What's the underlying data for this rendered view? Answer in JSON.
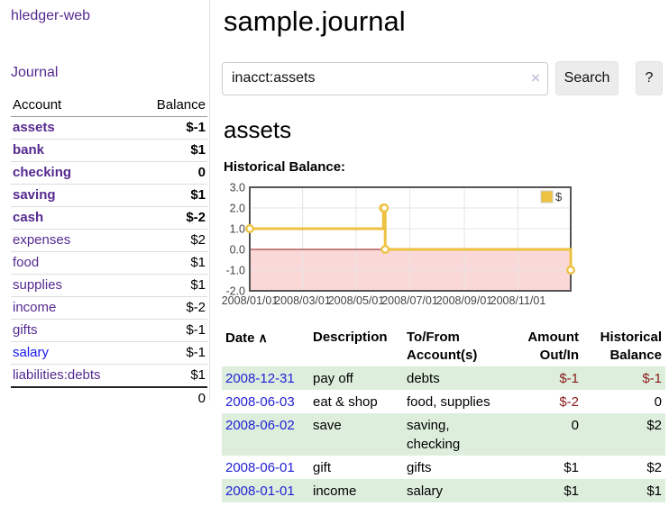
{
  "app": {
    "brand": "hledger-web",
    "nav_journal": "Journal"
  },
  "sidebar": {
    "accounts_header": {
      "account": "Account",
      "balance": "Balance"
    },
    "accounts": [
      {
        "name": "assets",
        "depth": 1,
        "balance": "$-1",
        "bold": true,
        "negative": "strong"
      },
      {
        "name": "bank",
        "depth": 2,
        "balance": "$1",
        "bold": true,
        "negative": null
      },
      {
        "name": "checking",
        "depth": 3,
        "balance": "0",
        "bold": true,
        "negative": null
      },
      {
        "name": "saving",
        "depth": 3,
        "balance": "$1",
        "bold": true,
        "negative": null
      },
      {
        "name": "cash",
        "depth": 2,
        "balance": "$-2",
        "bold": true,
        "negative": "strong"
      },
      {
        "name": "expenses",
        "depth": 1,
        "balance": "$2",
        "bold": false,
        "negative": null
      },
      {
        "name": "food",
        "depth": 2,
        "balance": "$1",
        "bold": false,
        "negative": null
      },
      {
        "name": "supplies",
        "depth": 2,
        "balance": "$1",
        "bold": false,
        "negative": null
      },
      {
        "name": "income",
        "depth": 1,
        "balance": "$-2",
        "bold": false,
        "negative": "soft"
      },
      {
        "name": "gifts",
        "depth": 2,
        "balance": "$-1",
        "bold": false,
        "negative": "soft"
      },
      {
        "name": "salary",
        "depth": 2,
        "balance": "$-1",
        "bold": false,
        "negative": "soft",
        "link_color": "blue"
      },
      {
        "name": "liabilities:debts",
        "depth": 1,
        "balance": "$1",
        "bold": false,
        "negative": null
      }
    ],
    "total": "0"
  },
  "main": {
    "title": "sample.journal",
    "search": {
      "value": "inacct:assets",
      "clear_icon": "×",
      "button": "Search",
      "help_button": "?"
    },
    "account_heading": "assets",
    "chart_label": "Historical Balance:"
  },
  "chart_data": {
    "type": "line",
    "title": "Historical Balance",
    "steps": true,
    "series": [
      {
        "name": "$",
        "color": "#edc240",
        "points": [
          [
            "2008-01-01",
            1
          ],
          [
            "2008-06-01",
            2
          ],
          [
            "2008-06-02",
            2
          ],
          [
            "2008-06-03",
            0
          ],
          [
            "2008-12-31",
            -1
          ]
        ]
      }
    ],
    "xlim": [
      "2008-01-01",
      "2008-12-31"
    ],
    "ylim": [
      -2,
      3
    ],
    "x_ticks": [
      {
        "value": "2008-01-01",
        "label": "2008/01/01"
      },
      {
        "value": "2008-03-01",
        "label": "2008/03/01"
      },
      {
        "value": "2008-05-01",
        "label": "2008/05/01"
      },
      {
        "value": "2008-07-01",
        "label": "2008/07/01"
      },
      {
        "value": "2008-09-01",
        "label": "2008/09/01"
      },
      {
        "value": "2008-11-01",
        "label": "2008/11/01"
      }
    ],
    "y_ticks": [
      3.0,
      2.0,
      1.0,
      0.0,
      -1.0,
      -2.0
    ],
    "grid": true,
    "legend": {
      "label": "$",
      "position": "top-right"
    },
    "negative_region_color": "#fbd8d8",
    "zero_line_color": "#8b1414",
    "border_color": "#545454"
  },
  "register": {
    "headers": [
      "Date",
      "Description",
      "To/From Account(s)",
      "Amount Out/In",
      "Historical Balance"
    ],
    "sort_icon": "∧",
    "rows": [
      {
        "date": "2008-12-31",
        "description": "pay off",
        "accounts": "debts",
        "amount": "$-1",
        "amount_negative": true,
        "balance": "$-1",
        "balance_negative": true
      },
      {
        "date": "2008-06-03",
        "description": "eat & shop",
        "accounts": "food, supplies",
        "amount": "$-2",
        "amount_negative": true,
        "balance": "0",
        "balance_negative": false
      },
      {
        "date": "2008-06-02",
        "description": "save",
        "accounts": "saving, checking",
        "amount": "0",
        "amount_negative": false,
        "balance": "$2",
        "balance_negative": false
      },
      {
        "date": "2008-06-01",
        "description": "gift",
        "accounts": "gifts",
        "amount": "$1",
        "amount_negative": false,
        "balance": "$2",
        "balance_negative": false
      },
      {
        "date": "2008-01-01",
        "description": "income",
        "accounts": "salary",
        "amount": "$1",
        "amount_negative": false,
        "balance": "$1",
        "balance_negative": false
      }
    ]
  }
}
